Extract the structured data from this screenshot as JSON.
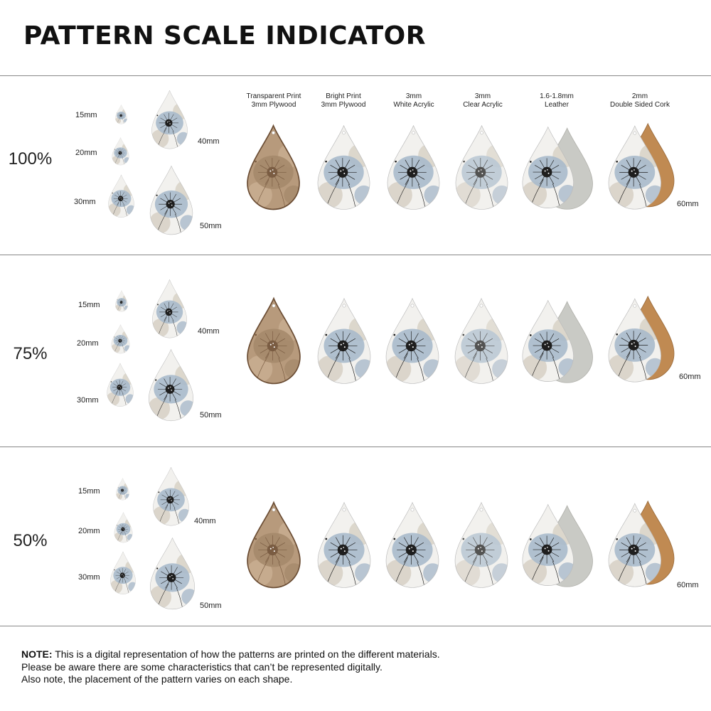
{
  "title": "PATTERN SCALE INDICATOR",
  "colors": {
    "pattern_bg": "#f2f1ee",
    "pattern_blue": "#a9bacb",
    "pattern_beige": "#d8d2c6",
    "pattern_dark": "#1e1e1e",
    "wood": "#b79a7c",
    "wood_dark": "#7a5c42",
    "leather_grey": "#c9cac5",
    "cork": "#c08a52"
  },
  "materials": [
    {
      "id": "transparent-plywood",
      "line1": "Transparent Print",
      "line2": "3mm Plywood"
    },
    {
      "id": "bright-plywood",
      "line1": "Bright Print",
      "line2": "3mm Plywood"
    },
    {
      "id": "white-acrylic",
      "line1": "3mm",
      "line2": "White Acrylic"
    },
    {
      "id": "clear-acrylic",
      "line1": "3mm",
      "line2": "Clear Acrylic"
    },
    {
      "id": "leather",
      "line1": "1.6-1.8mm",
      "line2": "Leather"
    },
    {
      "id": "cork",
      "line1": "2mm",
      "line2": "Double Sided Cork"
    }
  ],
  "rows": [
    {
      "scale": "100%",
      "sizes": [
        "15mm",
        "20mm",
        "30mm",
        "40mm",
        "50mm"
      ],
      "main_size": "60mm"
    },
    {
      "scale": "75%",
      "sizes": [
        "15mm",
        "20mm",
        "30mm",
        "40mm",
        "50mm"
      ],
      "main_size": "60mm"
    },
    {
      "scale": "50%",
      "sizes": [
        "15mm",
        "20mm",
        "30mm",
        "40mm",
        "50mm"
      ],
      "main_size": "60mm"
    }
  ],
  "note": {
    "label": "NOTE:",
    "line1": "This is a digital representation of how the patterns are printed on the different materials.",
    "line2": "Please be aware there are some characteristics that can’t be represented digitally.",
    "line3": "Also note, the placement of the pattern varies on each shape."
  }
}
